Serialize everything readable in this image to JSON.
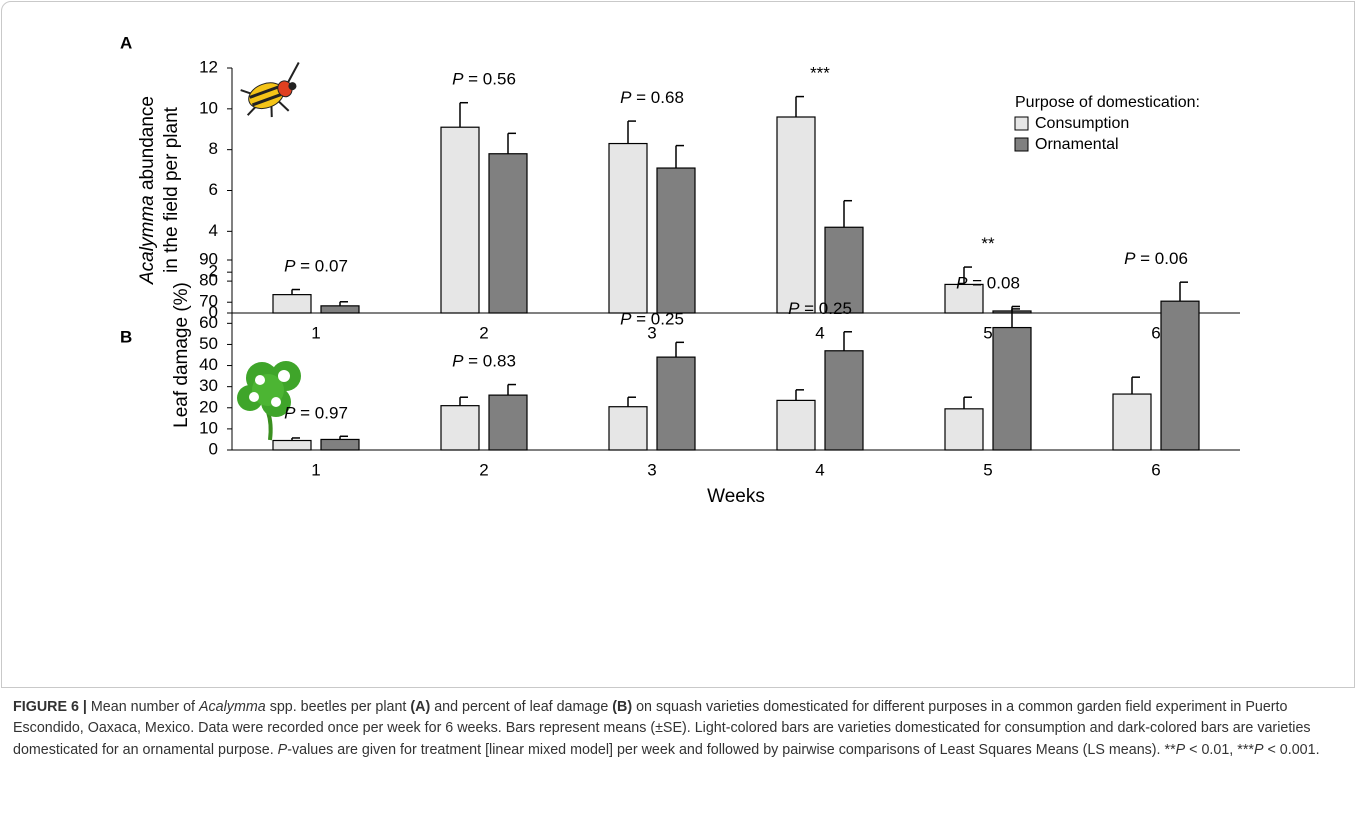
{
  "chart_data": [
    {
      "type": "bar",
      "panel_label": "A",
      "ylabel": [
        [
          {
            "text": "Acalymma",
            "italic": true
          },
          {
            "text": " abundance"
          }
        ],
        [
          {
            "text": "in the field per plant"
          }
        ]
      ],
      "categories": [
        "1",
        "2",
        "3",
        "4",
        "5",
        "6"
      ],
      "series": [
        {
          "name": "Consumption",
          "color": "#e6e6e6",
          "values": [
            0.9,
            9.1,
            8.3,
            9.6,
            1.4,
            null
          ],
          "errors": [
            0.25,
            1.2,
            1.1,
            1.0,
            0.85,
            null
          ]
        },
        {
          "name": "Ornamental",
          "color": "#808080",
          "values": [
            0.35,
            7.8,
            7.1,
            4.2,
            0.1,
            null
          ],
          "errors": [
            0.2,
            1.0,
            1.1,
            1.3,
            0.1,
            null
          ]
        }
      ],
      "annotations": [
        [
          {
            "text": "P",
            "italic": true
          },
          {
            "text": " = 0.07"
          }
        ],
        [
          {
            "text": "P",
            "italic": true
          },
          {
            "text": " = 0.56"
          }
        ],
        [
          {
            "text": "P",
            "italic": true
          },
          {
            "text": " = 0.68"
          }
        ],
        [
          {
            "text": "***"
          }
        ],
        [
          {
            "text": "**"
          }
        ],
        null
      ],
      "ylim": [
        0,
        12
      ],
      "yticks": [
        0,
        2,
        4,
        6,
        8,
        10,
        12
      ],
      "legend": {
        "title": "Purpose of domestication:",
        "position": "upper right"
      }
    },
    {
      "type": "bar",
      "panel_label": "B",
      "ylabel": [
        [
          {
            "text": "Leaf damage (%)"
          }
        ]
      ],
      "xlabel": "Weeks",
      "categories": [
        "1",
        "2",
        "3",
        "4",
        "5",
        "6"
      ],
      "series": [
        {
          "name": "Consumption",
          "color": "#e6e6e6",
          "values": [
            4.5,
            21,
            20.5,
            23.5,
            19.5,
            26.5
          ],
          "errors": [
            1.2,
            4,
            4.5,
            5,
            5.5,
            8
          ]
        },
        {
          "name": "Ornamental",
          "color": "#808080",
          "values": [
            5,
            26,
            44,
            47,
            58,
            70.5
          ],
          "errors": [
            1.5,
            5,
            7,
            9,
            10,
            9
          ]
        }
      ],
      "annotations": [
        [
          {
            "text": "P",
            "italic": true
          },
          {
            "text": " = 0.97"
          }
        ],
        [
          {
            "text": "P",
            "italic": true
          },
          {
            "text": " = 0.83"
          }
        ],
        [
          {
            "text": "P",
            "italic": true
          },
          {
            "text": " = 0.25"
          }
        ],
        [
          {
            "text": "P",
            "italic": true
          },
          {
            "text": " = 0.25"
          }
        ],
        [
          {
            "text": "P",
            "italic": true
          },
          {
            "text": " = 0.08"
          }
        ],
        [
          {
            "text": "P",
            "italic": true
          },
          {
            "text": " = 0.06"
          }
        ]
      ],
      "ylim": [
        0,
        90
      ],
      "yticks": [
        0,
        10,
        20,
        30,
        40,
        50,
        60,
        70,
        80,
        90
      ]
    }
  ],
  "caption": [
    {
      "text": "FIGURE 6 | ",
      "bold": true
    },
    {
      "text": "Mean number of "
    },
    {
      "text": "Acalymma",
      "italic": true
    },
    {
      "text": " spp. beetles per plant "
    },
    {
      "text": "(A)",
      "bold": true
    },
    {
      "text": " and percent of leaf damage "
    },
    {
      "text": "(B)",
      "bold": true
    },
    {
      "text": " on squash varieties domesticated for different purposes in a common garden field experiment in Puerto Escondido, Oaxaca, Mexico. Data were recorded once per week for 6 weeks. Bars represent means (±SE). Light-colored bars are varieties domesticated for consumption and dark-colored bars are varieties domesticated for an ornamental purpose. "
    },
    {
      "text": "P",
      "italic": true
    },
    {
      "text": "-values are given for treatment [linear mixed model] per week and followed by pairwise comparisons of Least Squares Means (LS means). **"
    },
    {
      "text": "P",
      "italic": true
    },
    {
      "text": " < 0.01, ***"
    },
    {
      "text": "P",
      "italic": true
    },
    {
      "text": " < 0.001."
    }
  ]
}
